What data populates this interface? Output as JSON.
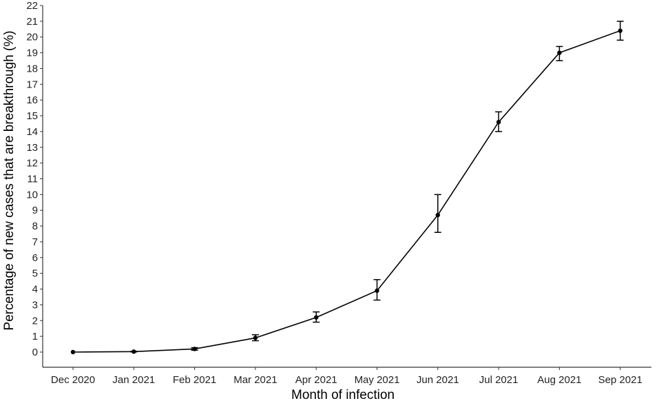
{
  "chart_data": {
    "type": "line",
    "xlabel": "Month of infection",
    "ylabel": "Percentage of new cases that are breakthrough (%)",
    "categories": [
      "Dec 2020",
      "Jan 2021",
      "Feb 2021",
      "Mar 2021",
      "Apr 2021",
      "May 2021",
      "Jun 2021",
      "Jul 2021",
      "Aug 2021",
      "Sep 2021"
    ],
    "values": [
      0.0,
      0.03,
      0.2,
      0.9,
      2.2,
      3.9,
      8.7,
      14.6,
      19.0,
      20.4
    ],
    "error_low": [
      0.0,
      0.01,
      0.12,
      0.72,
      1.9,
      3.3,
      7.6,
      14.0,
      18.5,
      19.8
    ],
    "error_high": [
      0.0,
      0.05,
      0.28,
      1.1,
      2.55,
      4.6,
      10.0,
      15.25,
      19.4,
      21.0
    ],
    "ylim": [
      0,
      22
    ],
    "yticks": [
      0,
      1,
      2,
      3,
      4,
      5,
      6,
      7,
      8,
      9,
      10,
      11,
      12,
      13,
      14,
      15,
      16,
      17,
      18,
      19,
      20,
      21,
      22
    ],
    "grid": false,
    "legend": "none",
    "colors": {
      "line": "#000000",
      "axis": "#333333"
    }
  }
}
